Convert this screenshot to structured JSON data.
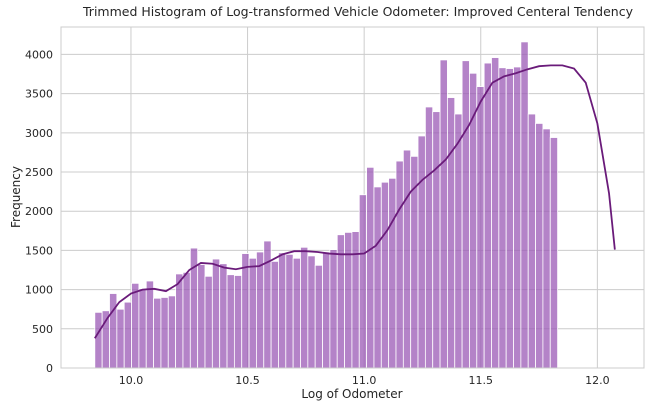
{
  "chart_data": {
    "type": "bar",
    "title": "Trimmed Histogram of Log-transformed Vehicle Odometer: Improved Centeral Tendency",
    "xlabel": "Log of Odometer",
    "ylabel": "Frequency",
    "xlim": [
      9.7,
      12.2
    ],
    "ylim": [
      0,
      4350
    ],
    "x_ticks": [
      10.0,
      10.5,
      11.0,
      11.5,
      12.0
    ],
    "x_tick_labels": [
      "10.0",
      "10.5",
      "11.0",
      "11.5",
      "12.0"
    ],
    "y_ticks": [
      0,
      500,
      1000,
      1500,
      2000,
      2500,
      3000,
      3500,
      4000
    ],
    "y_tick_labels": [
      "0",
      "500",
      "1000",
      "1500",
      "2000",
      "2500",
      "3000",
      "3500",
      "4000"
    ],
    "grid": true,
    "bin_start": 9.845,
    "bin_width": 0.0315,
    "values": [
      710,
      730,
      950,
      750,
      840,
      1080,
      1010,
      1110,
      890,
      900,
      920,
      1200,
      1220,
      1530,
      1320,
      1170,
      1390,
      1330,
      1190,
      1180,
      1460,
      1400,
      1480,
      1620,
      1360,
      1470,
      1450,
      1400,
      1540,
      1430,
      1310,
      1480,
      1510,
      1700,
      1730,
      1740,
      2210,
      2560,
      2310,
      2370,
      2420,
      2640,
      2780,
      2700,
      2960,
      3330,
      3270,
      3930,
      3450,
      3240,
      3920,
      3760,
      3590,
      3890,
      3960,
      3830,
      3820,
      3840,
      4160,
      3240,
      3120,
      3050,
      2940
    ],
    "kde": {
      "x": [
        9.845,
        9.9,
        9.95,
        10.0,
        10.05,
        10.1,
        10.15,
        10.2,
        10.25,
        10.3,
        10.35,
        10.4,
        10.45,
        10.5,
        10.55,
        10.6,
        10.65,
        10.7,
        10.75,
        10.8,
        10.85,
        10.9,
        10.95,
        11.0,
        11.05,
        11.1,
        11.15,
        11.2,
        11.25,
        11.3,
        11.35,
        11.4,
        11.45,
        11.5,
        11.55,
        11.6,
        11.65,
        11.7,
        11.75,
        11.8,
        11.85,
        11.9,
        11.95,
        12.0,
        12.05,
        12.075
      ],
      "y": [
        380,
        640,
        840,
        950,
        1000,
        1010,
        980,
        1070,
        1250,
        1340,
        1330,
        1280,
        1260,
        1290,
        1300,
        1370,
        1450,
        1490,
        1490,
        1480,
        1460,
        1450,
        1450,
        1460,
        1560,
        1760,
        2020,
        2250,
        2400,
        2520,
        2660,
        2860,
        3100,
        3400,
        3640,
        3720,
        3760,
        3810,
        3850,
        3860,
        3860,
        3820,
        3640,
        3120,
        2230,
        1510
      ]
    }
  }
}
